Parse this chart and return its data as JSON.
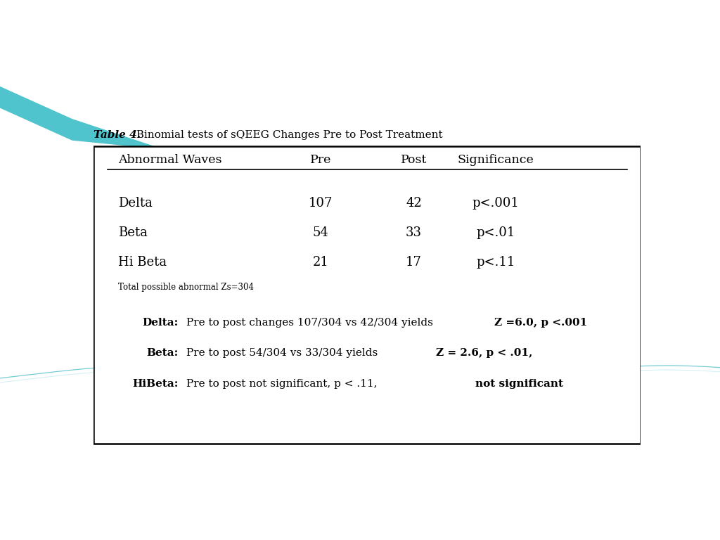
{
  "title_italic": "Table 4.",
  "title_regular": "  Binomial tests of sQEEG Changes Pre to Post Treatment",
  "header_cols": [
    "Abnormal Waves",
    "Pre",
    "Post",
    "Significance"
  ],
  "rows": [
    [
      "Delta",
      "107",
      "42",
      "p<.001"
    ],
    [
      "Beta",
      "54",
      "33",
      "p<.01"
    ],
    [
      "Hi Beta",
      "21",
      "17",
      "p<.11"
    ]
  ],
  "footnote": "Total possible abnormal Zs=304",
  "notes": [
    {
      "label": "Delta:",
      "text_normal": "Pre to post changes 107/304 vs 42/304 yields ",
      "text_bold": "Z =6.0, p <.001"
    },
    {
      "label": "Beta:",
      "text_normal": "Pre to post 54/304 vs 33/304 yields ",
      "text_bold": "Z = 2.6, p < .01,"
    },
    {
      "label": "HiBeta:",
      "text_normal": "Pre to post not significant, p < .11, ",
      "text_bold": "not significant"
    }
  ],
  "wave1_color": "#50C4CC",
  "wave2_color": "#7DD8E0",
  "wave3_color": "#FFFFFF",
  "bg_color": "#FFFFFF"
}
